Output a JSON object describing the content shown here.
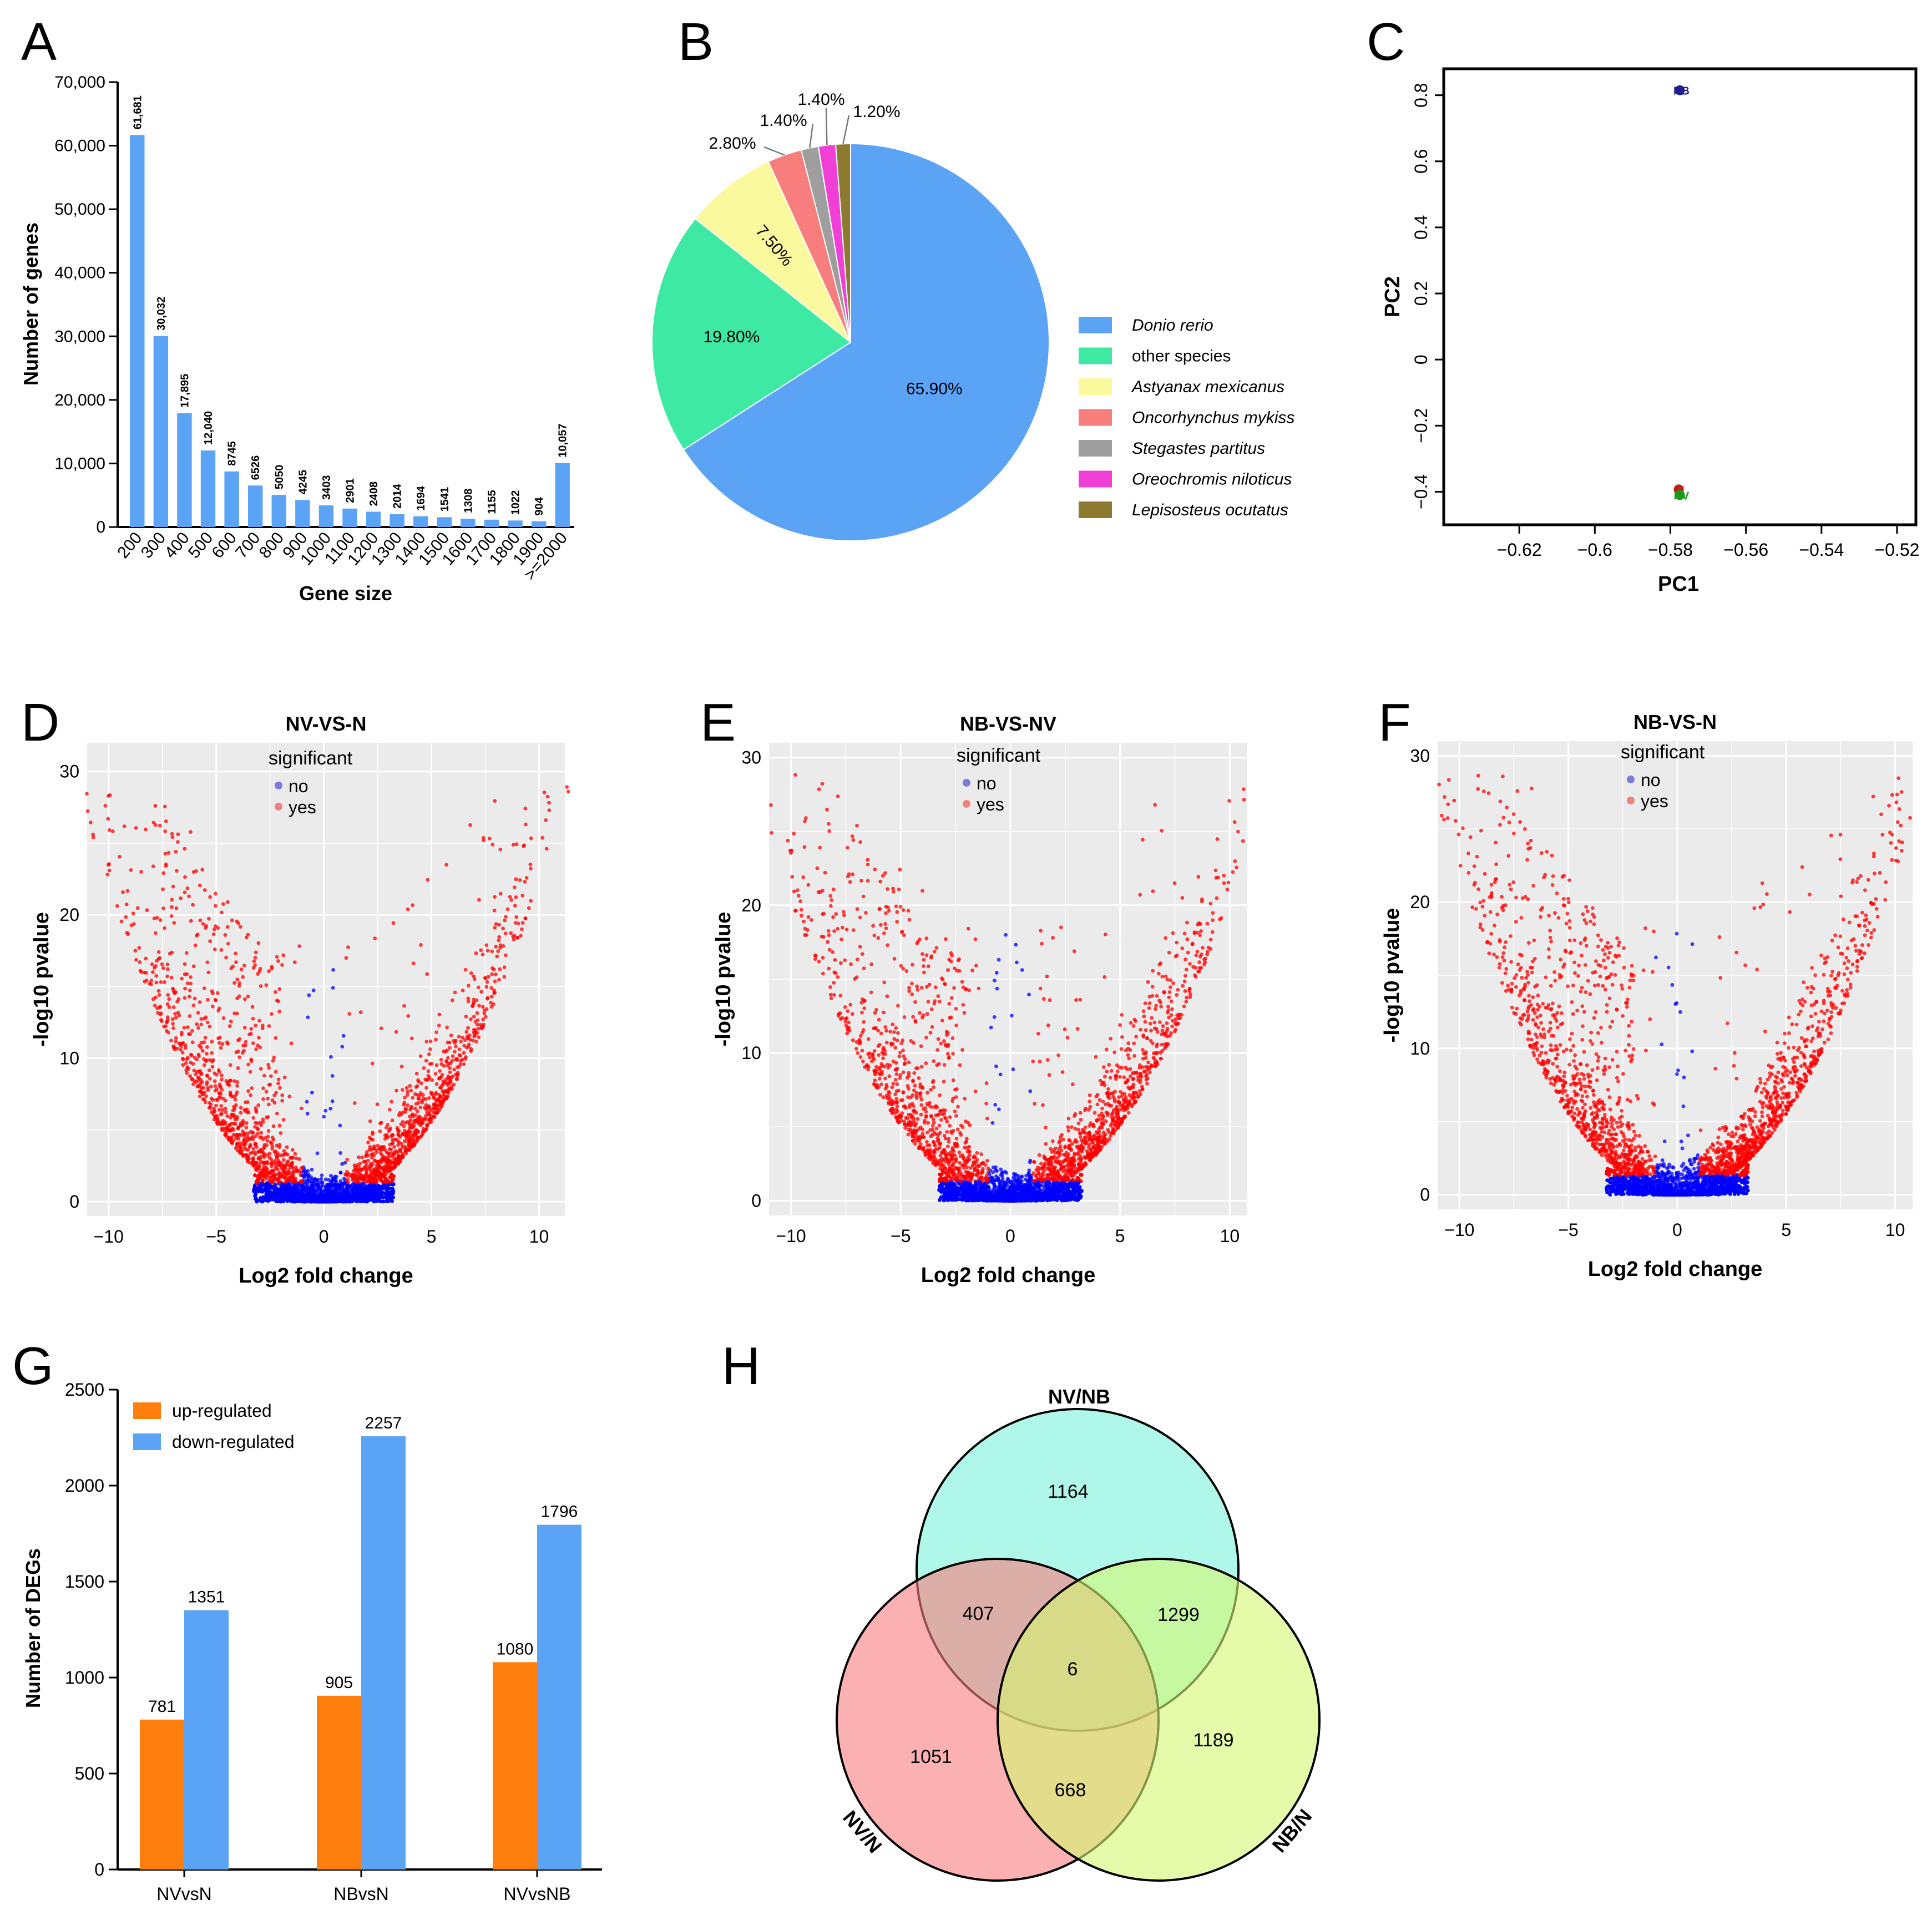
{
  "figure": {
    "panel_letters": [
      "A",
      "B",
      "C",
      "D",
      "E",
      "F",
      "G",
      "H"
    ],
    "colors": {
      "bar_blue": "#5ba3f5",
      "bar_orange": "#ff7f0e",
      "volcano_bg": "#ebebeb",
      "sig_yes": "#ff0000",
      "sig_no": "#0000ff",
      "legend_no_dot": "#7b7bd9",
      "legend_yes_dot": "#f08080"
    }
  },
  "chart_data": [
    {
      "panel": "A",
      "type": "bar",
      "title": "",
      "xlabel": "Gene size",
      "ylabel": "Number of genes",
      "ylim": [
        0,
        70000
      ],
      "yticks": [
        "0",
        "10,000",
        "20,000",
        "30,000",
        "40,000",
        "50,000",
        "60,000",
        "70,000"
      ],
      "categories": [
        "200",
        "300",
        "400",
        "500",
        "600",
        "700",
        "800",
        "900",
        "1000",
        "1100",
        "1200",
        "1300",
        "1400",
        "1500",
        "1600",
        "1700",
        "1800",
        "1900",
        ">=2000"
      ],
      "values": [
        61681,
        30032,
        17895,
        12040,
        8745,
        6526,
        5050,
        4245,
        3403,
        2901,
        2408,
        2014,
        1694,
        1541,
        1308,
        1155,
        1022,
        904,
        10057
      ],
      "value_labels": [
        "61,681",
        "30,032",
        "17,895",
        "12,040",
        "8745",
        "6526",
        "5050",
        "4245",
        "3403",
        "2901",
        "2408",
        "2014",
        "1694",
        "1541",
        "1308",
        "1155",
        "1022",
        "904",
        "10,057"
      ]
    },
    {
      "panel": "B",
      "type": "pie",
      "slices": [
        {
          "label": "Donio rerio",
          "value": 65.9,
          "text": "65.90%",
          "color": "#5ba3f5",
          "italic": true
        },
        {
          "label": "other species",
          "value": 19.8,
          "text": "19.80%",
          "color": "#3ee9a4",
          "italic": false
        },
        {
          "label": "Astyanax mexicanus",
          "value": 7.5,
          "text": "7.50%",
          "color": "#fbf99d",
          "italic": true
        },
        {
          "label": "Oncorhynchus mykiss",
          "value": 2.8,
          "text": "2.80%",
          "color": "#f87d7d",
          "italic": true
        },
        {
          "label": "Stegastes partitus",
          "value": 1.4,
          "text": "1.40%",
          "color": "#9e9e9e",
          "italic": true
        },
        {
          "label": "Oreochromis niloticus",
          "value": 1.4,
          "text": "1.40%",
          "color": "#ef3fd4",
          "italic": true
        },
        {
          "label": "Lepisosteus ocutatus",
          "value": 1.2,
          "text": "1.20%",
          "color": "#8c7a30",
          "italic": true
        }
      ]
    },
    {
      "panel": "C",
      "type": "scatter",
      "xlabel": "PC1",
      "ylabel": "PC2",
      "xlim": [
        -0.64,
        -0.515
      ],
      "ylim": [
        -0.5,
        0.88
      ],
      "xticks": [
        -0.62,
        -0.6,
        -0.58,
        -0.56,
        -0.54,
        -0.52
      ],
      "xtick_labels": [
        "−0.62",
        "−0.6",
        "−0.58",
        "−0.56",
        "−0.54",
        "−0.52"
      ],
      "yticks": [
        -0.4,
        -0.2,
        0,
        0.2,
        0.4,
        0.6,
        0.8
      ],
      "ytick_labels": [
        "−0.4",
        "−0.2",
        "0",
        "0.2",
        "0.4",
        "0.6",
        "0.8"
      ],
      "points": [
        {
          "label": "NB",
          "x": -0.5775,
          "y": 0.815,
          "color": "#1f1f8f"
        },
        {
          "label": "N",
          "x": -0.5778,
          "y": -0.393,
          "color": "#c0201a"
        },
        {
          "label": "NV",
          "x": -0.5775,
          "y": -0.41,
          "color": "#1a9a1a"
        }
      ]
    },
    {
      "panel": "D",
      "type": "scatter",
      "title": "NV-VS-N",
      "xlabel": "Log2 fold change",
      "ylabel": "-log10 pvalue",
      "xlim": [
        -11,
        11.2
      ],
      "ylim": [
        -1,
        32
      ],
      "xticks": [
        -10,
        -5,
        0,
        5,
        10
      ],
      "xtick_labels": [
        "−10",
        "−5",
        "0",
        "5",
        "10"
      ],
      "yticks": [
        0,
        10,
        20,
        30
      ],
      "ytick_labels": [
        "0",
        "10",
        "20",
        "30"
      ],
      "legend_title": "significant",
      "legend_items": [
        "no",
        "yes"
      ],
      "sig_threshold": 1.3,
      "fc_threshold": 1,
      "shape_a": 0.13
    },
    {
      "panel": "E",
      "type": "scatter",
      "title": "NB-VS-NV",
      "xlabel": "Log2 fold change",
      "ylabel": "-log10 pvalue",
      "xlim": [
        -11,
        10.8
      ],
      "ylim": [
        -1,
        31
      ],
      "xticks": [
        -10,
        -5,
        0,
        5,
        10
      ],
      "xtick_labels": [
        "−10",
        "−5",
        "0",
        "5",
        "10"
      ],
      "yticks": [
        0,
        10,
        20,
        30
      ],
      "ytick_labels": [
        "0",
        "10",
        "20",
        "30"
      ],
      "legend_title": "significant",
      "legend_items": [
        "no",
        "yes"
      ],
      "sig_threshold": 1.3,
      "fc_threshold": 1,
      "shape_a": 0.12
    },
    {
      "panel": "F",
      "type": "scatter",
      "title": "NB-VS-N",
      "xlabel": "Log2 fold change",
      "ylabel": "-log10 pvalue",
      "xlim": [
        -11,
        10.8
      ],
      "ylim": [
        -1,
        31
      ],
      "xticks": [
        -10,
        -5,
        0,
        5,
        10
      ],
      "xtick_labels": [
        "−10",
        "−5",
        "0",
        "5",
        "10"
      ],
      "yticks": [
        0,
        10,
        20,
        30
      ],
      "ytick_labels": [
        "0",
        "10",
        "20",
        "30"
      ],
      "legend_title": "significant",
      "legend_items": [
        "no",
        "yes"
      ],
      "sig_threshold": 1.3,
      "fc_threshold": 1,
      "shape_a": 0.13
    },
    {
      "panel": "G",
      "type": "bar",
      "ylabel": "Number of DEGs",
      "ylim": [
        0,
        2500
      ],
      "yticks": [
        "0",
        "500",
        "1000",
        "1500",
        "2000",
        "2500"
      ],
      "categories": [
        "NVvsN",
        "NBvsN",
        "NVvsNB"
      ],
      "series": [
        {
          "name": "up-regulated",
          "color": "#ff7f0e",
          "values": [
            781,
            905,
            1080
          ]
        },
        {
          "name": "down-regulated",
          "color": "#5ba3f5",
          "values": [
            1351,
            2257,
            1796
          ]
        }
      ]
    },
    {
      "panel": "H",
      "type": "venn",
      "sets": [
        {
          "label": "NV/NB",
          "color": "#7af2d8"
        },
        {
          "label": "NV/N",
          "color": "#f87d7d"
        },
        {
          "label": "NB/N",
          "color": "#d3f871"
        }
      ],
      "regions": [
        {
          "name": "NV/NB only",
          "value": "1164"
        },
        {
          "name": "NV/NB & NV/N",
          "value": "407"
        },
        {
          "name": "NV/NB & NB/N",
          "value": "1299"
        },
        {
          "name": "all three",
          "value": "6"
        },
        {
          "name": "NV/N only",
          "value": "1051"
        },
        {
          "name": "NV/N & NB/N",
          "value": "668"
        },
        {
          "name": "NB/N only",
          "value": "1189"
        }
      ]
    }
  ]
}
